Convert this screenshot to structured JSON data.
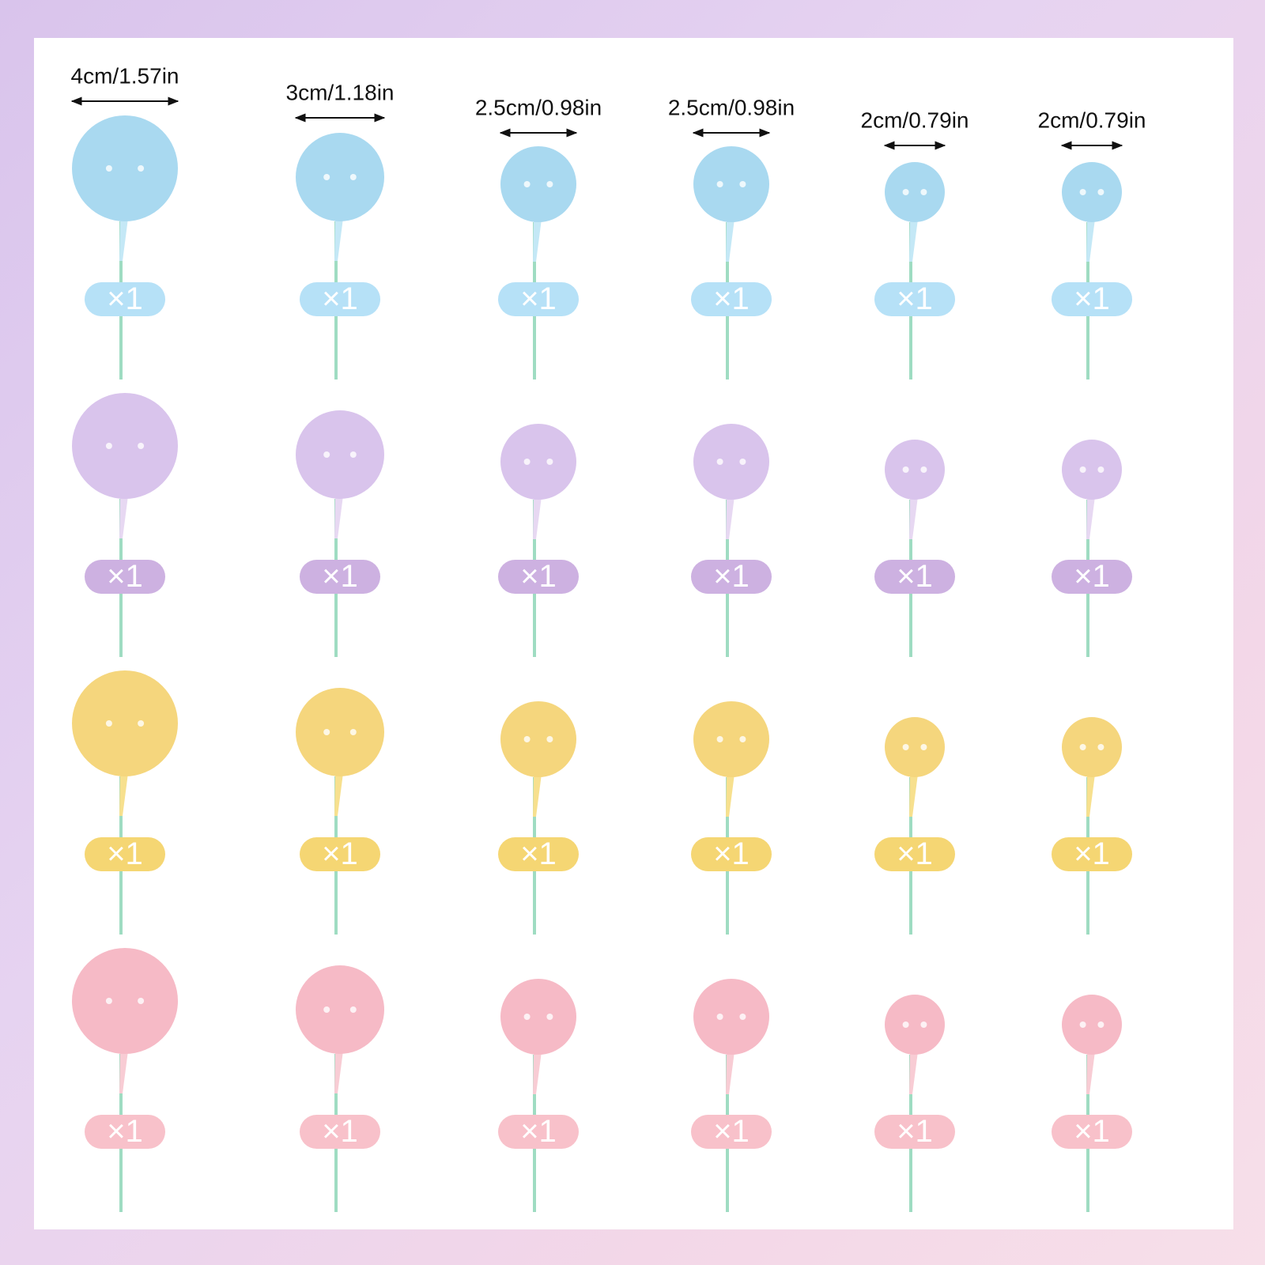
{
  "columns": [
    "4cm/1.57in",
    "3cm/1.18in",
    "2.5cm/0.98in",
    "2.5cm/0.98in",
    "2cm/0.79in",
    "2cm/0.79in"
  ],
  "rows": [
    {
      "badges": [
        "×1",
        "×1",
        "×1",
        "×1",
        "×1",
        "×1"
      ]
    },
    {
      "badges": [
        "×1",
        "×1",
        "×1",
        "×1",
        "×1",
        "×1"
      ]
    },
    {
      "badges": [
        "×1",
        "×1",
        "×1",
        "×1",
        "×1",
        "×1"
      ]
    },
    {
      "badges": [
        "×1",
        "×1",
        "×1",
        "×1",
        "×1",
        "×1"
      ]
    }
  ]
}
